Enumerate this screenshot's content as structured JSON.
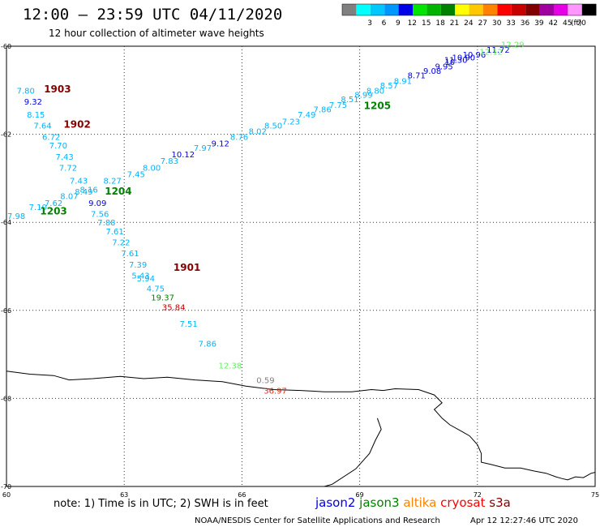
{
  "header": {
    "title": "12:00 – 23:59 UTC 04/11/2020",
    "subtitle": "12 hour collection of altimeter wave heights"
  },
  "legend": {
    "unit": "(ft)",
    "bins": [
      {
        "label": "",
        "color": "#808080"
      },
      {
        "label": "3",
        "color": "#00ffff"
      },
      {
        "label": "6",
        "color": "#00c8ff"
      },
      {
        "label": "9",
        "color": "#0096ff"
      },
      {
        "label": "12",
        "color": "#0000e6"
      },
      {
        "label": "15",
        "color": "#00e600"
      },
      {
        "label": "18",
        "color": "#00b400"
      },
      {
        "label": "21",
        "color": "#008200"
      },
      {
        "label": "24",
        "color": "#ffff00"
      },
      {
        "label": "27",
        "color": "#ffc800"
      },
      {
        "label": "30",
        "color": "#ff8200"
      },
      {
        "label": "33",
        "color": "#ff0000"
      },
      {
        "label": "36",
        "color": "#c80000"
      },
      {
        "label": "39",
        "color": "#820000"
      },
      {
        "label": "42",
        "color": "#a000a0"
      },
      {
        "label": "45",
        "color": "#e600e6"
      },
      {
        "label": "70",
        "color": "#ff96ff"
      },
      {
        "label": "",
        "color": "#000000"
      }
    ]
  },
  "footer": {
    "note": "note: 1) Time is in UTC; 2) SWH is in feet",
    "credit": "NOAA/NESDIS Center for Satellite Applications and Research",
    "timestamp": "Apr 12 12:27:46 UTC 2020",
    "satellites": [
      {
        "name": "jason2",
        "color": "#0000e6"
      },
      {
        "name": "jason3",
        "color": "#008200"
      },
      {
        "name": "altika",
        "color": "#ff8200"
      },
      {
        "name": "cryosat",
        "color": "#ff0000"
      },
      {
        "name": "s3a",
        "color": "#820000"
      }
    ]
  },
  "chart_data": {
    "type": "map",
    "xlim": [
      60,
      75
    ],
    "ylim": [
      -70,
      -60
    ],
    "x_ticks": [
      "60",
      "63",
      "66",
      "69",
      "72",
      "75"
    ],
    "y_ticks": [
      "-60",
      "-62",
      "-64",
      "-66",
      "-68",
      "-70"
    ],
    "colors": {
      "c": "#00b4ff",
      "b": "#0000e6",
      "g": "#008200",
      "l": "#66ee66",
      "r": "#c80000",
      "d": "#820000",
      "k": "#808080",
      "br": "#d7301f"
    },
    "points": [
      [
        "7.80",
        60.49,
        -61.0,
        "c"
      ],
      [
        "9.32",
        60.68,
        -61.25,
        "b"
      ],
      [
        "8.15",
        60.75,
        -61.55,
        "c"
      ],
      [
        "7.64",
        60.92,
        -61.8,
        "c"
      ],
      [
        "6.72",
        61.14,
        -62.05,
        "c"
      ],
      [
        "7.70",
        61.32,
        -62.25,
        "c"
      ],
      [
        "7.43",
        61.48,
        -62.5,
        "c"
      ],
      [
        "7.72",
        61.57,
        -62.75,
        "c"
      ],
      [
        "7.43",
        61.84,
        -63.05,
        "c"
      ],
      [
        "8.49",
        61.97,
        -63.3,
        "c"
      ],
      [
        "9.09",
        62.32,
        -63.55,
        "b"
      ],
      [
        "7.56",
        62.38,
        -63.8,
        "c"
      ],
      [
        "7.88",
        62.55,
        -64.0,
        "c"
      ],
      [
        "7.61",
        62.76,
        -64.2,
        "c"
      ],
      [
        "7.22",
        62.92,
        -64.45,
        "c"
      ],
      [
        "7.61",
        63.15,
        -64.7,
        "c"
      ],
      [
        "7.39",
        63.35,
        -64.95,
        "c"
      ],
      [
        "5.43",
        63.42,
        -65.2,
        "c"
      ],
      [
        "5.94",
        63.55,
        -65.27,
        "c"
      ],
      [
        "4.75",
        63.8,
        -65.5,
        "c"
      ],
      [
        "19.37",
        63.98,
        -65.7,
        "g"
      ],
      [
        "35.84",
        64.26,
        -65.92,
        "r"
      ],
      [
        "7.51",
        64.64,
        -66.3,
        "c"
      ],
      [
        "7.86",
        65.12,
        -66.75,
        "c"
      ],
      [
        "12.38",
        65.7,
        -67.25,
        "l"
      ],
      [
        "7.98",
        60.25,
        -63.85,
        "c"
      ],
      [
        "7.10",
        60.8,
        -63.65,
        "c"
      ],
      [
        "7.62",
        61.2,
        -63.55,
        "c"
      ],
      [
        "8.07",
        61.6,
        -63.4,
        "c"
      ],
      [
        "8.16",
        62.1,
        -63.25,
        "c"
      ],
      [
        "8.27",
        62.7,
        -63.05,
        "c"
      ],
      [
        "7.45",
        63.3,
        -62.9,
        "c"
      ],
      [
        "8.00",
        63.7,
        -62.75,
        "c"
      ],
      [
        "7.83",
        64.15,
        -62.6,
        "c"
      ],
      [
        "10.12",
        64.5,
        -62.45,
        "b"
      ],
      [
        "7.97",
        65.0,
        -62.3,
        "c"
      ],
      [
        "9.12",
        65.45,
        -62.2,
        "b"
      ],
      [
        "8.76",
        65.93,
        -62.05,
        "c"
      ],
      [
        "8.02",
        66.4,
        -61.92,
        "c"
      ],
      [
        "8.50",
        66.8,
        -61.8,
        "c"
      ],
      [
        "7.23",
        67.25,
        -61.7,
        "c"
      ],
      [
        "7.49",
        67.65,
        -61.55,
        "c"
      ],
      [
        "7.86",
        68.05,
        -61.43,
        "c"
      ],
      [
        "7.75",
        68.45,
        -61.33,
        "c"
      ],
      [
        "8.51",
        68.75,
        -61.2,
        "c"
      ],
      [
        "8.99",
        69.1,
        -61.1,
        "c"
      ],
      [
        "8.80",
        69.4,
        -61.0,
        "c"
      ],
      [
        "8.57",
        69.75,
        -60.88,
        "c"
      ],
      [
        "8.91",
        70.1,
        -60.78,
        "c"
      ],
      [
        "8.71",
        70.45,
        -60.65,
        "b"
      ],
      [
        "9.08",
        70.85,
        -60.55,
        "b"
      ],
      [
        "9.95",
        71.15,
        -60.45,
        "b"
      ],
      [
        "10",
        71.3,
        -60.35,
        "b"
      ],
      [
        "11.30",
        71.45,
        -60.3,
        "b"
      ],
      [
        "10.90",
        71.65,
        -60.25,
        "b"
      ],
      [
        "10.96",
        71.92,
        -60.18,
        "b"
      ],
      [
        "11.72",
        72.53,
        -60.07,
        "b"
      ],
      [
        "12.12",
        72.35,
        -60.12,
        "l"
      ],
      [
        "12.29",
        72.9,
        -59.95,
        "l"
      ],
      [
        "0.59",
        66.6,
        -67.58,
        "k"
      ],
      [
        "36.97",
        66.85,
        -67.82,
        "br"
      ]
    ],
    "tracks": [
      {
        "name": "1903",
        "lon": 61.3,
        "lat": -60.98,
        "color": "d"
      },
      {
        "name": "1902",
        "lon": 61.8,
        "lat": -61.78,
        "color": "d"
      },
      {
        "name": "1901",
        "lon": 64.6,
        "lat": -65.03,
        "color": "d"
      },
      {
        "name": "1204",
        "lon": 62.85,
        "lat": -63.3,
        "color": "g"
      },
      {
        "name": "1203",
        "lon": 61.2,
        "lat": -63.75,
        "color": "g"
      },
      {
        "name": "1205",
        "lon": 69.45,
        "lat": -61.35,
        "color": "g"
      }
    ],
    "coastline": [
      [
        60.0,
        -67.38
      ],
      [
        60.6,
        -67.45
      ],
      [
        61.2,
        -67.48
      ],
      [
        61.6,
        -67.58
      ],
      [
        62.2,
        -67.55
      ],
      [
        62.9,
        -67.5
      ],
      [
        63.5,
        -67.55
      ],
      [
        64.1,
        -67.52
      ],
      [
        64.8,
        -67.58
      ],
      [
        65.5,
        -67.62
      ],
      [
        66.1,
        -67.72
      ],
      [
        66.8,
        -67.8
      ],
      [
        67.5,
        -67.82
      ],
      [
        68.1,
        -67.85
      ],
      [
        68.8,
        -67.85
      ],
      [
        69.3,
        -67.8
      ],
      [
        69.6,
        -67.82
      ],
      [
        69.9,
        -67.78
      ],
      [
        70.5,
        -67.8
      ],
      [
        70.9,
        -67.92
      ],
      [
        71.1,
        -68.1
      ],
      [
        70.9,
        -68.25
      ],
      [
        71.1,
        -68.45
      ],
      [
        71.3,
        -68.6
      ],
      [
        71.6,
        -68.75
      ],
      [
        71.8,
        -68.85
      ],
      [
        72.0,
        -69.05
      ],
      [
        72.1,
        -69.25
      ],
      [
        72.1,
        -69.45
      ],
      [
        72.35,
        -69.5
      ],
      [
        72.7,
        -69.58
      ],
      [
        73.1,
        -69.58
      ],
      [
        73.45,
        -69.65
      ],
      [
        73.75,
        -69.7
      ],
      [
        74.0,
        -69.78
      ],
      [
        74.15,
        -69.82
      ],
      [
        74.3,
        -69.85
      ],
      [
        74.5,
        -69.78
      ],
      [
        74.7,
        -69.8
      ],
      [
        74.9,
        -69.7
      ],
      [
        75.0,
        -69.68
      ]
    ],
    "coastline2": [
      [
        69.45,
        -68.45
      ],
      [
        69.55,
        -68.7
      ],
      [
        69.4,
        -68.95
      ],
      [
        69.25,
        -69.25
      ],
      [
        68.9,
        -69.6
      ],
      [
        68.3,
        -69.95
      ],
      [
        68.1,
        -70.0
      ]
    ]
  }
}
